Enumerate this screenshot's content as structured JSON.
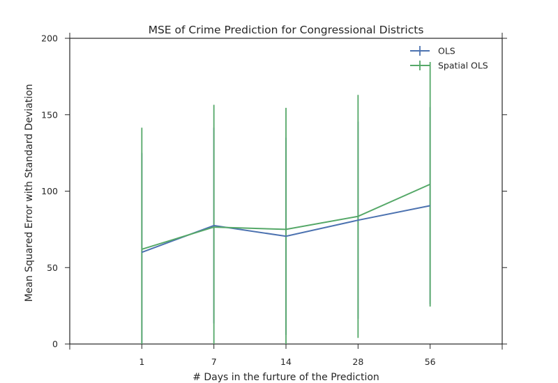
{
  "chart_data": {
    "type": "line",
    "title": "MSE of Crime Prediction for Congressional Districts",
    "xlabel": "# Days in the furture of the Prediction",
    "ylabel": "Mean Squared Error with Standard Deviation",
    "categories": [
      "1",
      "7",
      "14",
      "28",
      "56"
    ],
    "ylim": [
      0,
      200
    ],
    "yticks": [
      "0",
      "50",
      "100",
      "150",
      "200"
    ],
    "grid": false,
    "legend_position": "top-right",
    "series": [
      {
        "name": "OLS",
        "color": "#4c72b0",
        "values": [
          60,
          77.5,
          70.5,
          81,
          90.5
        ],
        "errors": [
          65,
          64,
          64.5,
          64.5,
          64.5
        ]
      },
      {
        "name": "Spatial OLS",
        "color": "#55a868",
        "values": [
          62,
          76.5,
          75,
          83.5,
          104.5
        ],
        "errors": [
          79.5,
          80,
          79.5,
          79.5,
          80
        ]
      }
    ]
  }
}
